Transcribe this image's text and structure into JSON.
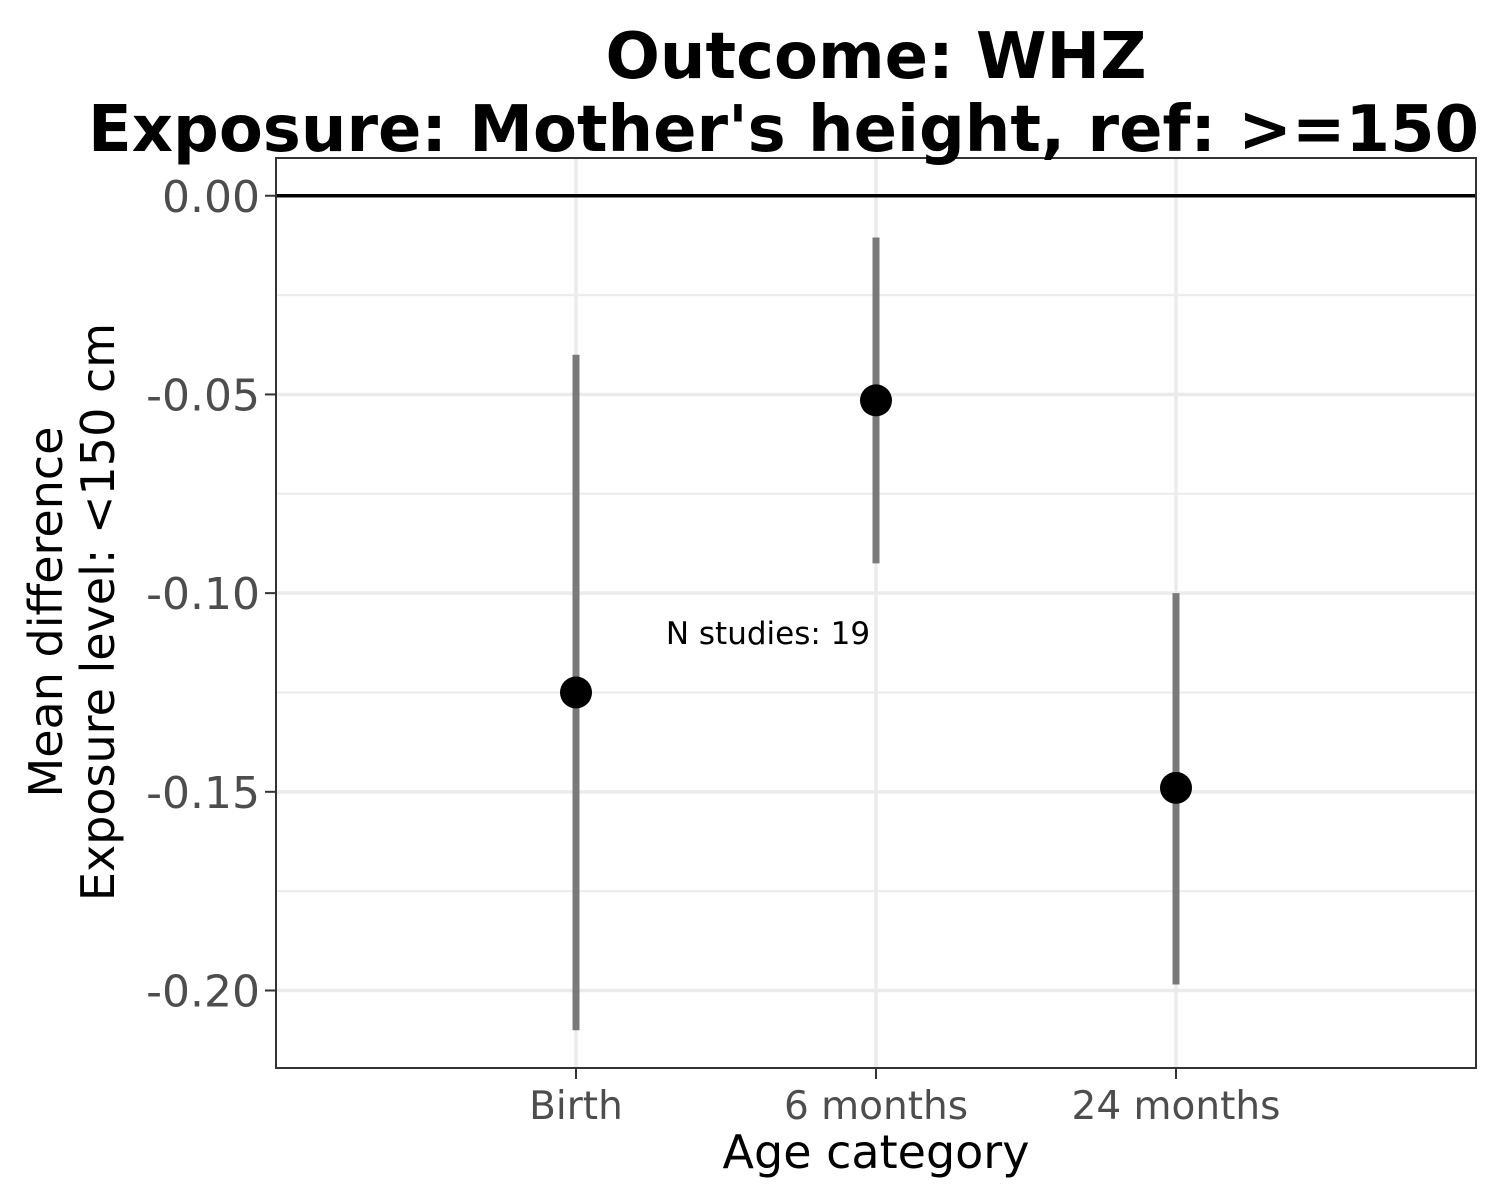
{
  "chart_data": {
    "type": "scatter",
    "title_lines": [
      "Outcome: WHZ",
      "Exposure: Mother's height, ref: >=150"
    ],
    "xlabel": "Age category",
    "ylabel_lines": [
      "Mean difference",
      "Exposure level: <150 cm"
    ],
    "categories": [
      "Birth",
      "6 months",
      "24 months"
    ],
    "series": [
      {
        "estimates": [
          -0.125,
          -0.0515,
          -0.149
        ],
        "ci_lower": [
          -0.21,
          -0.0925,
          -0.1985
        ],
        "ci_upper": [
          -0.04,
          -0.0105,
          -0.1
        ]
      }
    ],
    "ylim": [
      -0.2195,
      0.0095
    ],
    "yticks": [
      0.0,
      -0.05,
      -0.1,
      -0.15,
      -0.2
    ],
    "ytick_labels": [
      "0.00",
      "-0.05",
      "-0.10",
      "-0.15",
      "-0.20"
    ],
    "reference_line": 0.0,
    "annotation": {
      "text": "N studies: 19",
      "x_category": "Birth",
      "y": -0.11
    },
    "grid": true,
    "legend": "none",
    "colors": {
      "point": "#000000",
      "errorbar": "#7a7a7a",
      "grid": "#ebebeb",
      "reference_line": "#000000"
    }
  }
}
